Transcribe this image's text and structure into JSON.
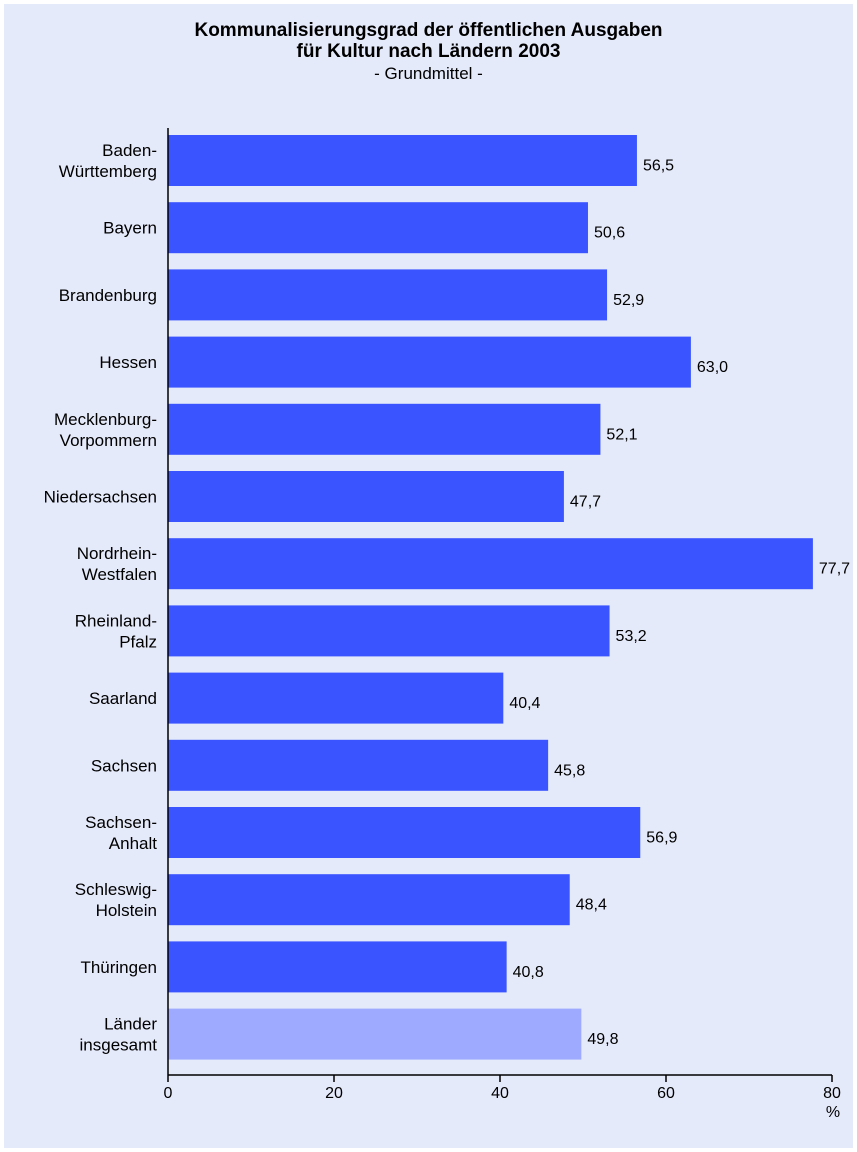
{
  "chart_data": {
    "type": "bar",
    "orientation": "horizontal",
    "title_lines": [
      "Kommunalisierungsgrad der öffentlichen Ausgaben",
      "für Kultur nach Ländern 2003"
    ],
    "subtitle": "- Grundmittel -",
    "xlabel": "%",
    "ylabel": "",
    "xlim": [
      0,
      80
    ],
    "xticks": [
      0,
      20,
      40,
      60,
      80
    ],
    "grid": false,
    "categories": [
      [
        "Baden-",
        "Württemberg"
      ],
      [
        "Bayern"
      ],
      [
        "Brandenburg"
      ],
      [
        "Hessen"
      ],
      [
        "Mecklenburg-",
        "Vorpommern"
      ],
      [
        "Niedersachsen"
      ],
      [
        "Nordrhein-",
        "Westfalen"
      ],
      [
        "Rheinland-",
        "Pfalz"
      ],
      [
        "Saarland"
      ],
      [
        "Sachsen"
      ],
      [
        "Sachsen-",
        "Anhalt"
      ],
      [
        "Schleswig-",
        "Holstein"
      ],
      [
        "Thüringen"
      ],
      [
        "Länder",
        "insgesamt"
      ]
    ],
    "values": [
      56.5,
      50.6,
      52.9,
      63.0,
      52.1,
      47.7,
      77.7,
      53.2,
      40.4,
      45.8,
      56.9,
      48.4,
      40.8,
      49.8
    ],
    "value_labels": [
      "56,5",
      "50,6",
      "52,9",
      "63,0",
      "52,1",
      "47,7",
      "77,7",
      "53,2",
      "40,4",
      "45,8",
      "56,9",
      "48,4",
      "40,8",
      "49,8"
    ],
    "highlight_index": 13,
    "colors": {
      "bar": "#3a55ff",
      "bar_highlight": "#9daaff",
      "background": "#e5eafa",
      "axis": "#000000"
    }
  }
}
